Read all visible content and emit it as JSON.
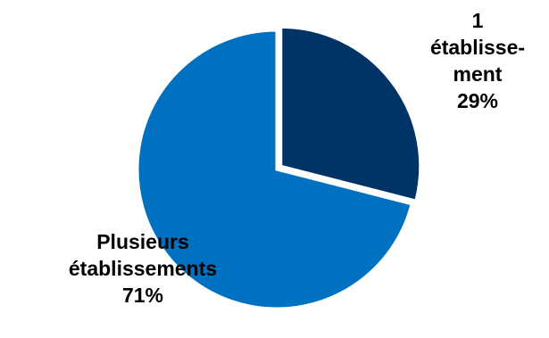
{
  "chart_data": {
    "type": "pie",
    "slices": [
      {
        "label_lines": [
          "1",
          "établisse-",
          "ment"
        ],
        "percent_label": "29%",
        "value": 29,
        "color": "#003366"
      },
      {
        "label_lines": [
          "Plusieurs",
          "établissements"
        ],
        "percent_label": "71%",
        "value": 71,
        "color": "#0070C0"
      }
    ],
    "start_angle": "12 o'clock",
    "direction": "clockwise",
    "slice_separator_color": "#ffffff",
    "first_slice_exploded": true
  }
}
